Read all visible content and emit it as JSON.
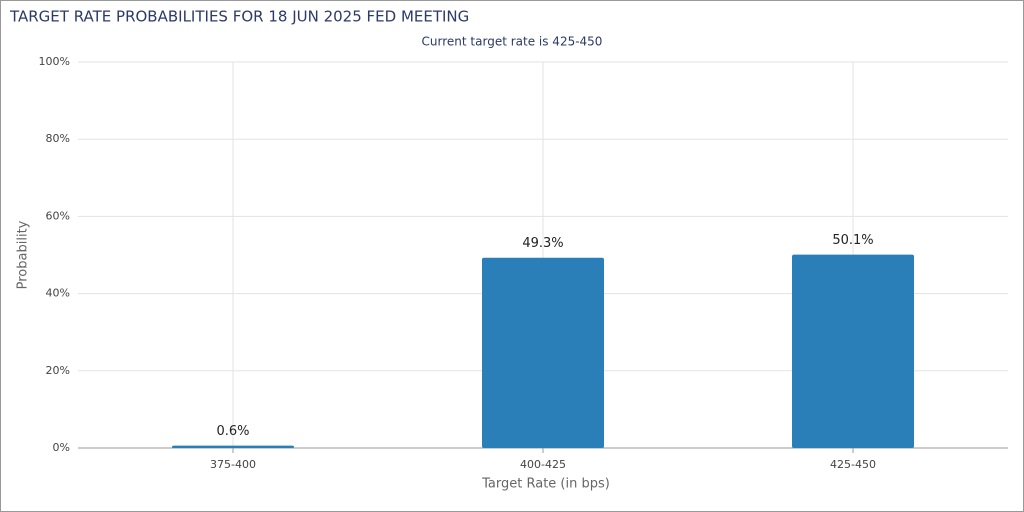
{
  "chart_data": {
    "type": "bar",
    "title": "TARGET RATE PROBABILITIES FOR 18 JUN 2025 FED MEETING",
    "subtitle": "Current target rate is 425-450",
    "x_label": "Target Rate (in bps)",
    "y_label": "Probability",
    "categories": [
      "375-400",
      "400-425",
      "425-450"
    ],
    "values": [
      0.6,
      49.3,
      50.1
    ],
    "value_labels": [
      "0.6%",
      "49.3%",
      "50.1%"
    ],
    "color": "#2a7fb8",
    "ylim": [
      0,
      100
    ],
    "yticks": [
      {
        "value": 0,
        "label": "0%"
      },
      {
        "value": 20,
        "label": "20%"
      },
      {
        "value": 40,
        "label": "40%"
      },
      {
        "value": 60,
        "label": "60%"
      },
      {
        "value": 80,
        "label": "80%"
      },
      {
        "value": 100,
        "label": "100%"
      }
    ],
    "grid": true
  }
}
